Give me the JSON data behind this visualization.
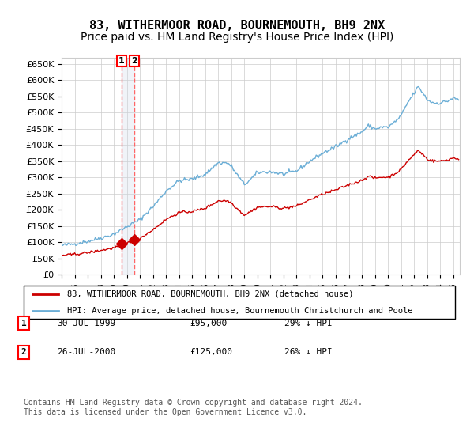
{
  "title": "83, WITHERMOOR ROAD, BOURNEMOUTH, BH9 2NX",
  "subtitle": "Price paid vs. HM Land Registry's House Price Index (HPI)",
  "legend_line1": "83, WITHERMOOR ROAD, BOURNEMOUTH, BH9 2NX (detached house)",
  "legend_line2": "HPI: Average price, detached house, Bournemouth Christchurch and Poole",
  "footnote": "Contains HM Land Registry data © Crown copyright and database right 2024.\nThis data is licensed under the Open Government Licence v3.0.",
  "sale1_date": 1999.58,
  "sale1_price": 95000,
  "sale1_label": "1",
  "sale1_table": "30-JUL-1999    £95,000    29% ↓ HPI",
  "sale2_date": 2000.58,
  "sale2_price": 125000,
  "sale2_label": "2",
  "sale2_table": "26-JUL-2000    £125,000    26% ↓ HPI",
  "hpi_color": "#6baed6",
  "price_color": "#cc0000",
  "marker_color": "#cc0000",
  "vline_color": "#ff6666",
  "vband_color": "#d0d8e8",
  "grid_color": "#cccccc",
  "bg_color": "#ffffff",
  "ylim": [
    0,
    670000
  ],
  "xlim_start": 1995.0,
  "xlim_end": 2025.5,
  "title_fontsize": 11,
  "subtitle_fontsize": 10
}
